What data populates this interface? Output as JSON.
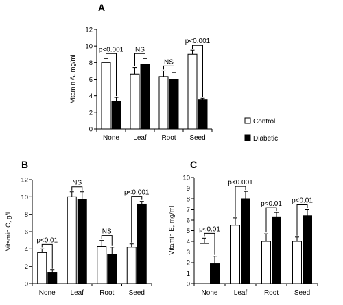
{
  "chart_data": [
    {
      "type": "bar",
      "panel": "A",
      "title": "A",
      "ylabel": "Vitamin A, mg/ml",
      "categories": [
        "None",
        "Leaf",
        "Root",
        "Seed"
      ],
      "ylim": [
        0,
        12
      ],
      "yticks": [
        0,
        2,
        4,
        6,
        8,
        10,
        12
      ],
      "series": [
        {
          "name": "Control",
          "values": [
            8.0,
            6.6,
            6.3,
            9.0
          ],
          "errors": [
            0.5,
            0.8,
            0.7,
            0.5
          ]
        },
        {
          "name": "Diabetic",
          "values": [
            3.3,
            7.8,
            6.0,
            3.5
          ],
          "errors": [
            0.5,
            0.7,
            0.8,
            0.2
          ]
        }
      ],
      "significance": [
        "p<0.001",
        "NS",
        "NS",
        "p<0.001"
      ]
    },
    {
      "type": "bar",
      "panel": "B",
      "title": "B",
      "ylabel": "Vitamin C, g/l",
      "categories": [
        "None",
        "Leaf",
        "Root",
        "Seed"
      ],
      "ylim": [
        0,
        12
      ],
      "yticks": [
        0,
        2,
        4,
        6,
        8,
        10,
        12
      ],
      "series": [
        {
          "name": "Control",
          "values": [
            3.6,
            10.0,
            4.3,
            4.2
          ],
          "errors": [
            0.4,
            0.6,
            0.7,
            0.4
          ]
        },
        {
          "name": "Diabetic",
          "values": [
            1.3,
            9.7,
            3.4,
            9.2
          ],
          "errors": [
            0.3,
            0.9,
            0.8,
            0.3
          ]
        }
      ],
      "significance": [
        "p<0.01",
        "NS",
        "NS",
        "p<0.001"
      ]
    },
    {
      "type": "bar",
      "panel": "C",
      "title": "C",
      "ylabel": "Vitamin E, mg/ml",
      "categories": [
        "None",
        "Leaf",
        "Root",
        "Seed"
      ],
      "ylim": [
        0,
        10
      ],
      "yticks": [
        0,
        1,
        2,
        3,
        4,
        5,
        6,
        7,
        8,
        9,
        10
      ],
      "series": [
        {
          "name": "Control",
          "values": [
            3.8,
            5.5,
            4.0,
            4.0
          ],
          "errors": [
            0.5,
            0.7,
            0.7,
            0.4
          ]
        },
        {
          "name": "Diabetic",
          "values": [
            1.9,
            8.0,
            6.3,
            6.4
          ],
          "errors": [
            0.7,
            0.7,
            0.4,
            0.6
          ]
        }
      ],
      "significance": [
        "p<0.01",
        "p<0.001",
        "p<0.01",
        "p<0.01"
      ]
    }
  ],
  "legend": {
    "items": [
      {
        "label": "Control",
        "color": "#ffffff"
      },
      {
        "label": "Diabetic",
        "color": "#000000"
      }
    ],
    "placement": "right"
  }
}
